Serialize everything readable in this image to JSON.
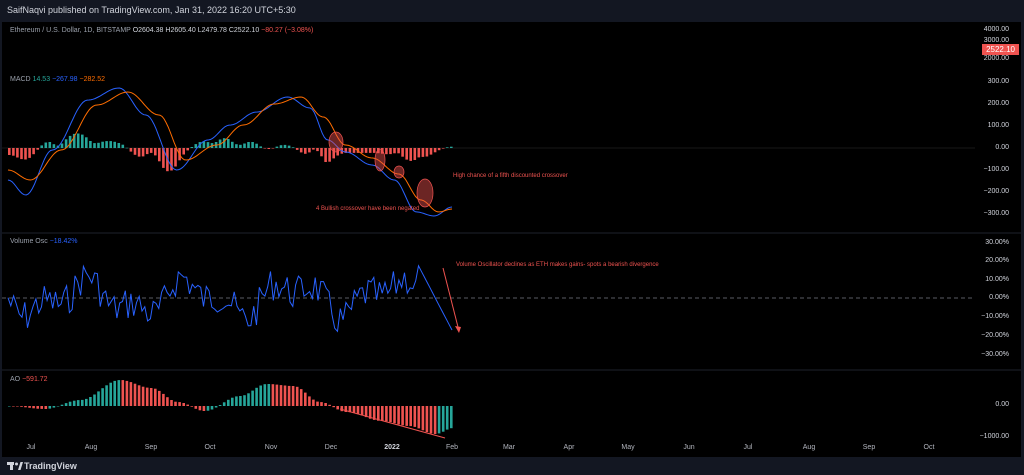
{
  "header": {
    "publisher_text": "SaifNaqvi published on TradingView.com, Jan 31, 2022 16:20 UTC+5:30"
  },
  "ticker": {
    "symbol": "Ethereum / U.S. Dollar, 1D, BITSTAMP",
    "open": "O2604.38",
    "high": "H2605.40",
    "low": "L2479.78",
    "close": "C2522.10",
    "change": "−80.27 (−3.08%)"
  },
  "price_axis": {
    "labels": [
      "4000.00",
      "3000.00",
      "2000.00"
    ],
    "last_price": "2522.10"
  },
  "macd": {
    "name": "MACD",
    "v1": "14.53",
    "v2": "−267.98",
    "v3": "−282.52",
    "axis": [
      "300.00",
      "200.00",
      "100.00",
      "0.00",
      "−100.00",
      "−200.00",
      "−300.00"
    ],
    "annotation_right": "High chance of a fifth discounted crossover",
    "annotation_bottom": "4 Bullish crossover have been negated"
  },
  "volume_osc": {
    "name": "Volume Osc",
    "value": "−18.42%",
    "axis": [
      "30.00%",
      "20.00%",
      "10.00%",
      "0.00%",
      "−10.00%",
      "−20.00%",
      "−30.00%"
    ],
    "annotation": "Volume Oscillator declines as ETH makes gains- spots a bearish divergence"
  },
  "ao": {
    "name": "AO",
    "value": "−591.72",
    "axis": [
      "0.00",
      "−1000.00"
    ]
  },
  "time_axis": {
    "months": [
      "Jul",
      "Aug",
      "Sep",
      "Oct",
      "Nov",
      "Dec",
      "2022",
      "Feb",
      "Mar",
      "Apr",
      "May",
      "Jun",
      "Jul",
      "Aug",
      "Sep",
      "Oct"
    ]
  },
  "footer": {
    "brand": "TradingView"
  },
  "colors": {
    "macd_line": "#2962ff",
    "signal_line": "#ff6d00",
    "bull": "#26a69a",
    "bear": "#ef5350",
    "osc": "#2962ff"
  }
}
